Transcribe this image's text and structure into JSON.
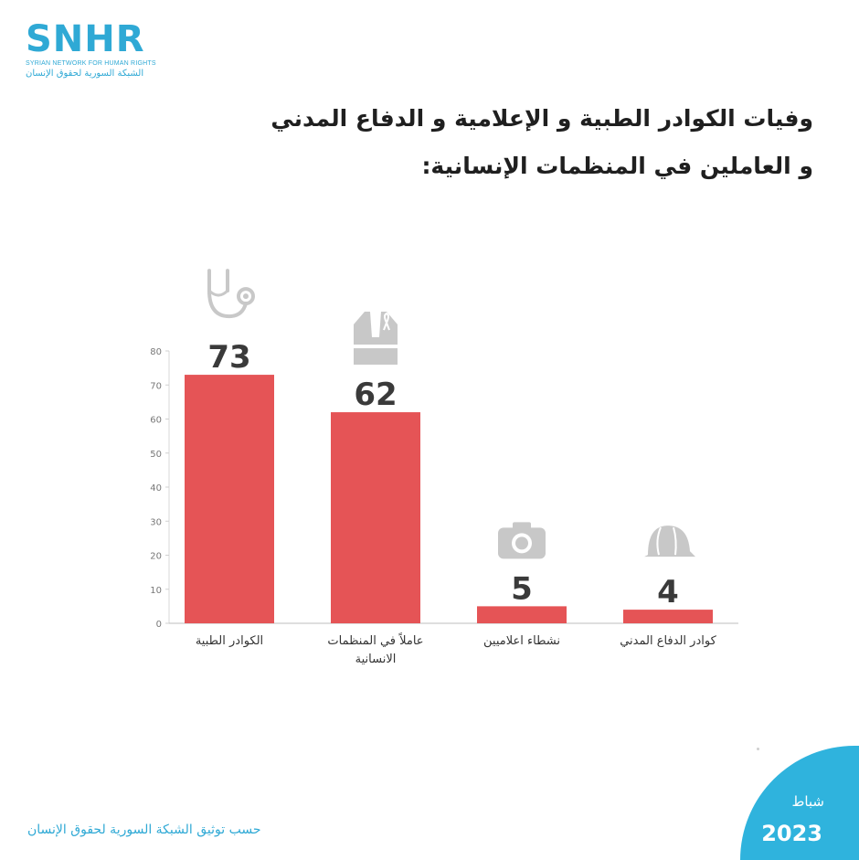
{
  "logo": {
    "main": "SNHR",
    "english": "SYRIAN NETWORK FOR HUMAN RIGHTS",
    "arabic": "الشبكة السورية لحقوق الإنسان"
  },
  "title": {
    "line1": "وفيات الكوادر الطبية و الإعلامية و الدفاع المدني",
    "line2": "و العاملين في المنظمات الإنسانية:"
  },
  "footer": {
    "source": "حسب توثيق الشبكة السورية لحقوق الإنسان",
    "month": "شباط",
    "year": "2023"
  },
  "colors": {
    "bar": "#e55456",
    "accent": "#2fb3dd",
    "icon": "#c8c8c8",
    "label": "#3a3a3a"
  },
  "chart_data": {
    "type": "bar",
    "categories": [
      [
        "الكوادر الطبية"
      ],
      [
        "عاملاً في المنظمات",
        "الانسانية"
      ],
      [
        "نشطاء اعلاميين"
      ],
      [
        "كوادر الدفاع المدني"
      ]
    ],
    "values": [
      73,
      62,
      5,
      4
    ],
    "data_labels": [
      "73",
      "62",
      "5",
      "4"
    ],
    "icons": [
      "stethoscope-icon",
      "vest-icon",
      "camera-icon",
      "helmet-icon"
    ],
    "ylim": [
      0,
      80
    ],
    "yticks": [
      0,
      10,
      20,
      30,
      40,
      50,
      60,
      70,
      80
    ],
    "grid": false
  }
}
